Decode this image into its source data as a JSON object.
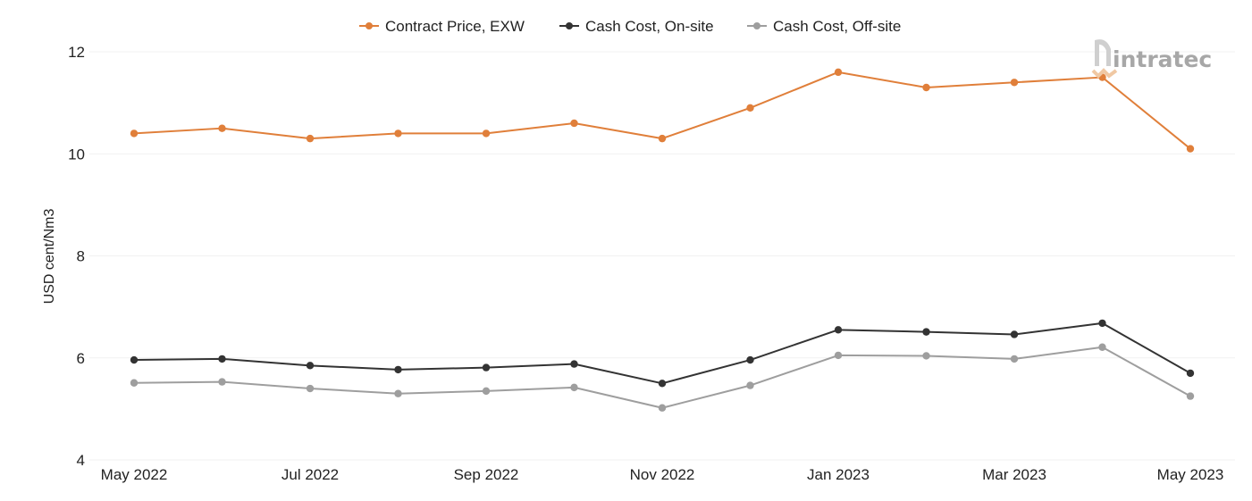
{
  "chart_data": {
    "type": "line",
    "title": "",
    "xlabel": "",
    "ylabel": "USD cent/Nm3",
    "ylim": [
      4,
      12
    ],
    "yticks": [
      4,
      6,
      8,
      10,
      12
    ],
    "grid": true,
    "legend": "top-center",
    "x": [
      "May 2022",
      "Jun 2022",
      "Jul 2022",
      "Aug 2022",
      "Sep 2022",
      "Oct 2022",
      "Nov 2022",
      "Dec 2022",
      "Jan 2023",
      "Feb 2023",
      "Mar 2023",
      "Apr 2023",
      "May 2023"
    ],
    "x_tick_labels": [
      "May 2022",
      "",
      "Jul 2022",
      "",
      "Sep 2022",
      "",
      "Nov 2022",
      "",
      "Jan 2023",
      "",
      "Mar 2023",
      "",
      "May 2023"
    ],
    "series": [
      {
        "name": "Contract Price, EXW",
        "color": "#e07f3a",
        "values": [
          10.4,
          10.5,
          10.3,
          10.4,
          10.4,
          10.6,
          10.3,
          10.9,
          11.6,
          11.3,
          11.4,
          11.5,
          10.1
        ]
      },
      {
        "name": "Cash Cost, On-site",
        "color": "#333333",
        "values": [
          5.96,
          5.98,
          5.85,
          5.77,
          5.81,
          5.88,
          5.5,
          5.96,
          6.55,
          6.51,
          6.46,
          6.68,
          5.7
        ]
      },
      {
        "name": "Cash Cost, Off-site",
        "color": "#9e9e9e",
        "values": [
          5.51,
          5.53,
          5.4,
          5.3,
          5.35,
          5.42,
          5.02,
          5.46,
          6.05,
          6.04,
          5.98,
          6.21,
          5.25
        ]
      }
    ]
  },
  "logo": {
    "text": "intratec",
    "icon": "intratec-logo-icon"
  }
}
